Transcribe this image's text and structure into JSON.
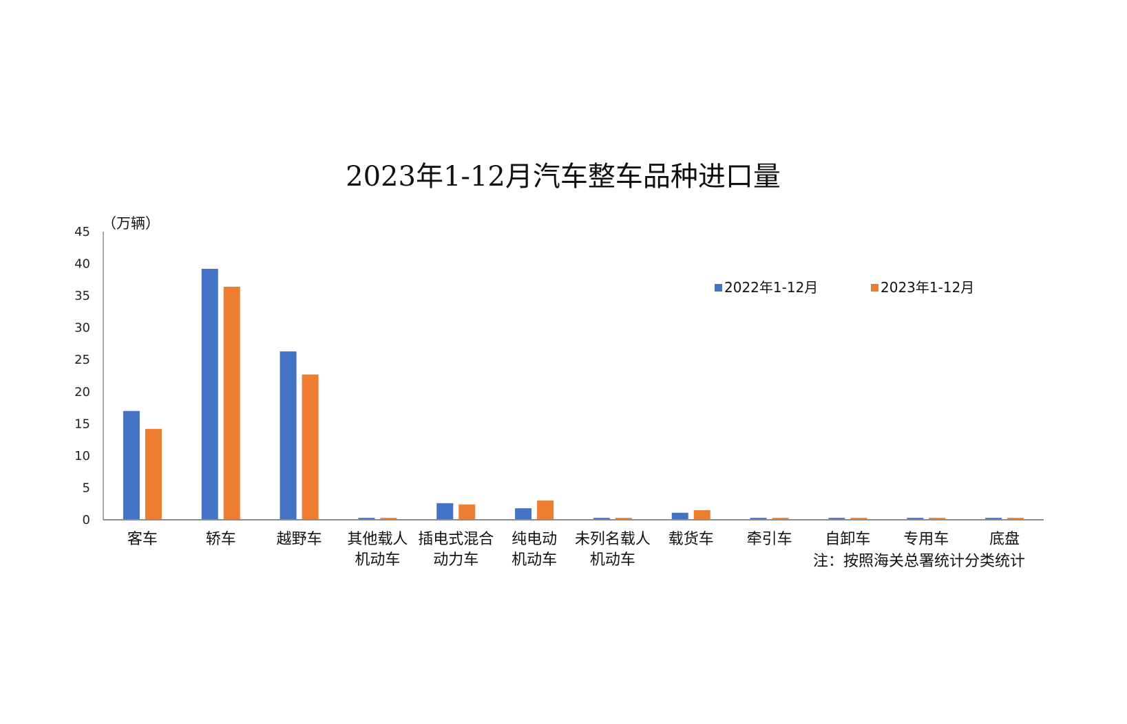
{
  "chart_data": {
    "type": "bar",
    "title": "2023年1-12月汽车整车品种进口量",
    "unit_label": "（万辆）",
    "note": "注：按照海关总署统计分类统计",
    "ylim": [
      0,
      45
    ],
    "yticks": [
      0,
      5,
      10,
      15,
      20,
      25,
      30,
      35,
      40,
      45
    ],
    "grid": false,
    "legend_position": "top-right",
    "categories": [
      [
        "客车"
      ],
      [
        "轿车"
      ],
      [
        "越野车"
      ],
      [
        "其他载人",
        "机动车"
      ],
      [
        "插电式混合",
        "动力车"
      ],
      [
        "纯电动",
        "机动车"
      ],
      [
        "未列名载人",
        "机动车"
      ],
      [
        "载货车"
      ],
      [
        "牵引车"
      ],
      [
        "自卸车"
      ],
      [
        "专用车"
      ],
      [
        "底盘"
      ]
    ],
    "series": [
      {
        "name": "2022年1-12月",
        "color": "#4472C4",
        "values": [
          17.0,
          39.2,
          26.3,
          0.3,
          2.6,
          1.8,
          0.3,
          1.1,
          0.3,
          0.3,
          0.3,
          0.3
        ]
      },
      {
        "name": "2023年1-12月",
        "color": "#ED7D31",
        "values": [
          14.2,
          36.4,
          22.7,
          0.3,
          2.4,
          3.0,
          0.3,
          1.5,
          0.3,
          0.3,
          0.3,
          0.3
        ]
      }
    ]
  }
}
